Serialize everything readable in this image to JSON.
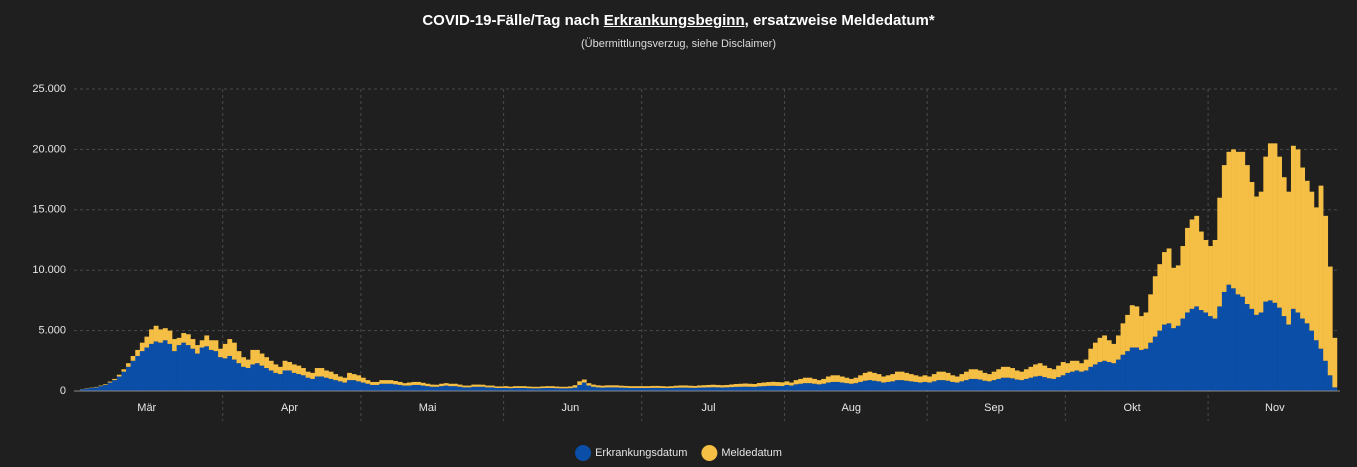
{
  "chart_data": {
    "type": "stacked-bar",
    "title": [
      "COVID-19-Fälle/Tag nach ",
      "Erkrankungsbeginn",
      ", ersatzweise Meldedatum*"
    ],
    "subtitle": "(Übermittlungsverzug, siehe Disclaimer)",
    "categories": [
      null,
      null,
      null,
      null,
      null,
      null,
      null,
      null,
      null,
      null,
      null,
      null,
      null,
      null,
      "Mär",
      null,
      null,
      null,
      null,
      null,
      null,
      null,
      null,
      null,
      null,
      null,
      null,
      null,
      null,
      null,
      null,
      null,
      null,
      null,
      null,
      null,
      null,
      null,
      null,
      null,
      null,
      null,
      null,
      null,
      null,
      "Apr",
      null,
      null,
      null,
      null,
      null,
      null,
      null,
      null,
      null,
      null,
      null,
      null,
      null,
      null,
      null,
      null,
      null,
      null,
      null,
      null,
      null,
      null,
      null,
      null,
      null,
      null,
      null,
      null,
      null,
      "Mai",
      null,
      null,
      null,
      null,
      null,
      null,
      null,
      null,
      null,
      null,
      null,
      null,
      null,
      null,
      null,
      null,
      null,
      null,
      null,
      null,
      null,
      null,
      null,
      null,
      null,
      null,
      null,
      null,
      null,
      null,
      "Jun",
      null,
      null,
      null,
      null,
      null,
      null,
      null,
      null,
      null,
      null,
      null,
      null,
      null,
      null,
      null,
      null,
      null,
      null,
      null,
      null,
      null,
      null,
      null,
      null,
      null,
      null,
      null,
      null,
      null,
      "Jul",
      null,
      null,
      null,
      null,
      null,
      null,
      null,
      null,
      null,
      null,
      null,
      null,
      null,
      null,
      null,
      null,
      null,
      null,
      null,
      null,
      null,
      null,
      null,
      null,
      null,
      null,
      null,
      null,
      null,
      null,
      "Aug",
      null,
      null,
      null,
      null,
      null,
      null,
      null,
      null,
      null,
      null,
      null,
      null,
      null,
      null,
      null,
      null,
      null,
      null,
      null,
      null,
      null,
      null,
      null,
      null,
      null,
      null,
      null,
      null,
      null,
      null,
      "Sep",
      null,
      null,
      null,
      null,
      null,
      null,
      null,
      null,
      null,
      null,
      null,
      null,
      null,
      null,
      null,
      null,
      null,
      null,
      null,
      null,
      null,
      null,
      null,
      null,
      null,
      null,
      null,
      null,
      null,
      "Okt",
      null,
      null,
      null,
      null,
      null,
      null,
      null,
      null,
      null,
      null,
      null,
      null,
      null,
      null,
      null,
      null,
      null,
      null,
      null,
      null,
      null,
      null,
      null,
      null,
      null,
      null,
      null,
      null,
      null,
      null,
      "Nov",
      null,
      null,
      null,
      null,
      null,
      null,
      null,
      null,
      null,
      null,
      null,
      null,
      null
    ],
    "series": [
      {
        "name": "Erkrankungsdatum",
        "color": "#0b4ea8",
        "values": [
          150,
          200,
          250,
          300,
          400,
          500,
          700,
          900,
          1200,
          1600,
          2000,
          2500,
          2900,
          3300,
          3600,
          3900,
          4100,
          4000,
          4200,
          3900,
          3300,
          3800,
          4000,
          3800,
          3500,
          3100,
          3600,
          3700,
          3400,
          3300,
          2800,
          2700,
          2900,
          2600,
          2300,
          2000,
          1900,
          2200,
          2300,
          2100,
          1900,
          1700,
          1500,
          1400,
          1700,
          1700,
          1500,
          1400,
          1300,
          1100,
          1000,
          1200,
          1200,
          1100,
          1000,
          900,
          800,
          700,
          900,
          900,
          800,
          700,
          600,
          500,
          500,
          600,
          600,
          600,
          550,
          500,
          450,
          450,
          500,
          500,
          450,
          400,
          350,
          350,
          400,
          450,
          400,
          400,
          350,
          300,
          300,
          350,
          350,
          350,
          300,
          300,
          250,
          250,
          250,
          230,
          250,
          250,
          250,
          230,
          220,
          220,
          240,
          250,
          250,
          230,
          220,
          220,
          230,
          280,
          500,
          700,
          450,
          350,
          300,
          280,
          300,
          300,
          300,
          280,
          270,
          250,
          250,
          250,
          250,
          250,
          260,
          260,
          250,
          240,
          250,
          270,
          280,
          280,
          270,
          260,
          280,
          290,
          300,
          310,
          300,
          290,
          300,
          320,
          340,
          350,
          360,
          350,
          340,
          380,
          400,
          420,
          430,
          420,
          410,
          500,
          450,
          550,
          600,
          650,
          650,
          600,
          550,
          600,
          700,
          750,
          750,
          700,
          650,
          600,
          650,
          750,
          850,
          900,
          850,
          800,
          700,
          750,
          800,
          900,
          900,
          850,
          800,
          750,
          700,
          750,
          700,
          800,
          900,
          900,
          850,
          750,
          700,
          800,
          900,
          1000,
          1000,
          950,
          850,
          800,
          900,
          1000,
          1100,
          1100,
          1050,
          950,
          900,
          1000,
          1100,
          1200,
          1250,
          1150,
          1050,
          1000,
          1150,
          1300,
          1500,
          1600,
          1700,
          1600,
          1700,
          2000,
          2200,
          2400,
          2500,
          2400,
          2300,
          2600,
          3000,
          3300,
          3600,
          3600,
          3400,
          3500,
          4000,
          4500,
          5000,
          5500,
          5600,
          5200,
          5400,
          6000,
          6500,
          6800,
          7000,
          6700,
          6500,
          6200,
          6000,
          7000,
          8200,
          8800,
          8500,
          8000,
          7800,
          7200,
          6800,
          6300,
          6500,
          7400,
          7500,
          7300,
          6900,
          6200,
          5500,
          6800,
          6500,
          6000,
          5600,
          5000,
          4200,
          3500,
          2500,
          1300,
          300
        ]
      },
      {
        "name": "Meldedatum",
        "color": "#f5be44",
        "values": [
          20,
          30,
          30,
          40,
          50,
          60,
          80,
          100,
          150,
          200,
          300,
          400,
          500,
          700,
          900,
          1200,
          1300,
          1100,
          1000,
          1100,
          1000,
          600,
          800,
          900,
          800,
          700,
          600,
          900,
          800,
          900,
          700,
          1200,
          1400,
          1400,
          1000,
          800,
          700,
          1200,
          1100,
          1000,
          900,
          800,
          700,
          600,
          800,
          700,
          700,
          700,
          600,
          500,
          500,
          700,
          700,
          600,
          600,
          500,
          400,
          400,
          600,
          500,
          500,
          400,
          300,
          250,
          250,
          300,
          300,
          300,
          280,
          250,
          200,
          250,
          250,
          250,
          230,
          200,
          180,
          170,
          200,
          200,
          200,
          200,
          180,
          150,
          150,
          180,
          180,
          170,
          150,
          150,
          130,
          130,
          150,
          130,
          150,
          150,
          150,
          140,
          130,
          130,
          140,
          150,
          150,
          140,
          130,
          130,
          150,
          200,
          300,
          250,
          200,
          180,
          170,
          160,
          170,
          170,
          170,
          160,
          150,
          150,
          150,
          150,
          150,
          150,
          160,
          160,
          150,
          140,
          150,
          170,
          180,
          180,
          170,
          160,
          180,
          190,
          200,
          210,
          200,
          190,
          200,
          220,
          240,
          250,
          260,
          250,
          240,
          280,
          300,
          320,
          330,
          320,
          310,
          300,
          250,
          350,
          400,
          450,
          450,
          400,
          350,
          400,
          500,
          550,
          550,
          500,
          450,
          400,
          450,
          550,
          650,
          700,
          650,
          600,
          500,
          550,
          600,
          700,
          700,
          650,
          600,
          550,
          500,
          550,
          500,
          600,
          700,
          700,
          650,
          550,
          500,
          600,
          700,
          800,
          800,
          750,
          650,
          600,
          700,
          800,
          900,
          900,
          850,
          750,
          700,
          800,
          900,
          1000,
          1050,
          950,
          850,
          800,
          950,
          1100,
          800,
          900,
          800,
          700,
          900,
          1500,
          1800,
          2000,
          2100,
          1800,
          1600,
          2000,
          2600,
          3000,
          3500,
          3400,
          2800,
          3000,
          4000,
          5000,
          5500,
          6000,
          6200,
          5000,
          5000,
          6000,
          7000,
          7400,
          7500,
          6500,
          6000,
          5800,
          6500,
          9000,
          10500,
          11000,
          11500,
          11800,
          12000,
          11500,
          10500,
          9800,
          10000,
          12000,
          13000,
          13200,
          12500,
          11500,
          11000,
          13500,
          13500,
          12500,
          11800,
          11500,
          11000,
          13500,
          12000,
          9000,
          4100
        ]
      }
    ],
    "ylim": [
      0,
      25000
    ],
    "yticks": [
      0,
      {
        "value": 5000,
        "label": "5.000"
      },
      {
        "value": 10000,
        "label": "10.000"
      },
      {
        "value": 15000,
        "label": "15.000"
      },
      {
        "value": 20000,
        "label": "20.000"
      },
      {
        "value": 25000,
        "label": "25.000"
      }
    ],
    "grid": true,
    "legend": "bottom"
  }
}
